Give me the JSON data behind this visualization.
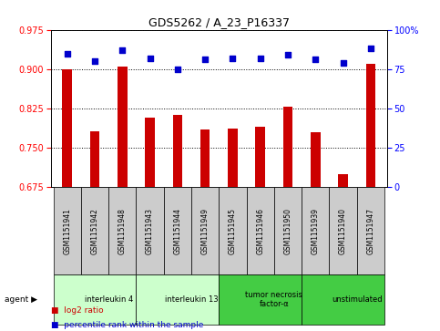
{
  "title": "GDS5262 / A_23_P16337",
  "samples": [
    "GSM1151941",
    "GSM1151942",
    "GSM1151948",
    "GSM1151943",
    "GSM1151944",
    "GSM1151949",
    "GSM1151945",
    "GSM1151946",
    "GSM1151950",
    "GSM1151939",
    "GSM1151940",
    "GSM1151947"
  ],
  "log2_ratio": [
    0.9,
    0.782,
    0.905,
    0.808,
    0.812,
    0.784,
    0.786,
    0.79,
    0.828,
    0.779,
    0.7,
    0.91
  ],
  "percentile": [
    85,
    80,
    87,
    82,
    75,
    81,
    82,
    82,
    84,
    81,
    79,
    88
  ],
  "ylim_left": [
    0.675,
    0.975
  ],
  "ylim_right": [
    0,
    100
  ],
  "yticks_left": [
    0.675,
    0.75,
    0.825,
    0.9,
    0.975
  ],
  "yticks_right": [
    0,
    25,
    50,
    75,
    100
  ],
  "bar_color": "#cc0000",
  "dot_color": "#0000cc",
  "agent_groups": [
    {
      "label": "interleukin 4",
      "start": 0,
      "end": 3,
      "color": "#ccffcc"
    },
    {
      "label": "interleukin 13",
      "start": 3,
      "end": 6,
      "color": "#ccffcc"
    },
    {
      "label": "tumor necrosis\nfactor-α",
      "start": 6,
      "end": 9,
      "color": "#44cc44"
    },
    {
      "label": "unstimulated",
      "start": 9,
      "end": 12,
      "color": "#44cc44"
    }
  ],
  "bg_color": "#ffffff",
  "sample_box_color": "#cccccc",
  "legend_items": [
    {
      "color": "#cc0000",
      "label": "log2 ratio"
    },
    {
      "color": "#0000cc",
      "label": "percentile rank within the sample"
    }
  ]
}
